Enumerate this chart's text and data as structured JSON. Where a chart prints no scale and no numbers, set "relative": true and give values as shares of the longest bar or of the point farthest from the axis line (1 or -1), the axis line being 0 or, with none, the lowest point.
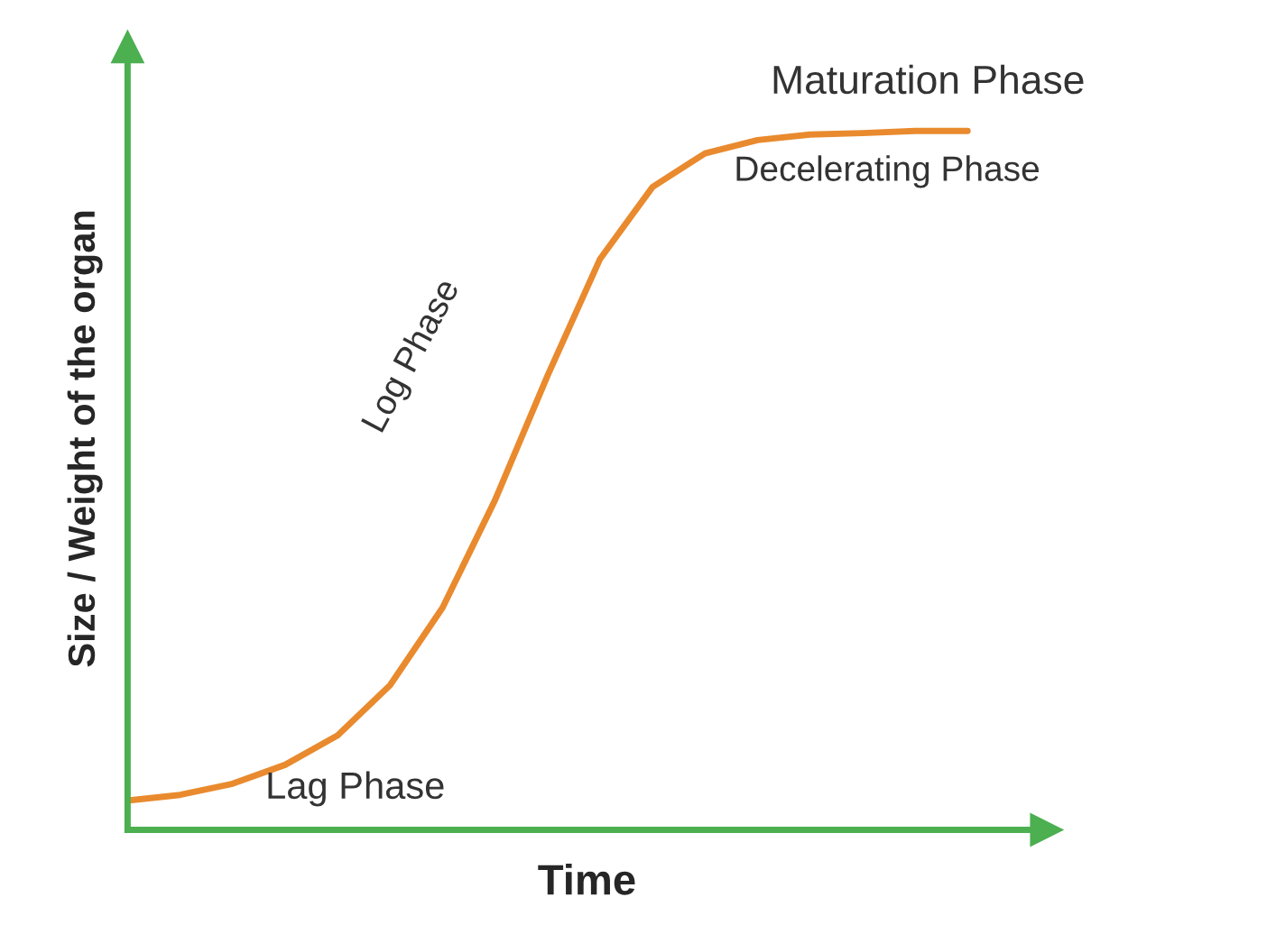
{
  "chart_data": {
    "type": "line",
    "relative": true,
    "xlabel": "Time",
    "ylabel": "Size / Weight of the organ",
    "categories": [
      null,
      null,
      null,
      null,
      null,
      null,
      null,
      null,
      null,
      null,
      null,
      null,
      null,
      null,
      null,
      null,
      null
    ],
    "series": [
      {
        "color": "#e98a2e",
        "values": [
          0.042,
          0.05,
          0.066,
          0.093,
          0.135,
          0.207,
          0.318,
          0.472,
          0.65,
          0.817,
          0.92,
          0.968,
          0.987,
          0.995,
          0.997,
          1,
          1
        ]
      }
    ],
    "annotations": [
      "Maturation Phase",
      "Decelerating Phase",
      "Log Phase",
      "Lag Phase"
    ],
    "grid": false,
    "legend": false,
    "marker": "none",
    "line_style": "solid"
  }
}
